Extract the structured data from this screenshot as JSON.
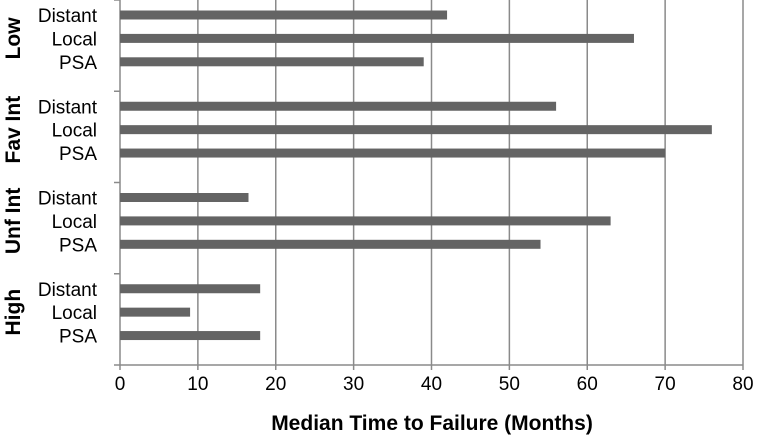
{
  "chart_data": {
    "type": "bar",
    "orientation": "horizontal",
    "xlabel": "Median Time to Failure (Months)",
    "xlim": [
      0,
      80
    ],
    "xticks": [
      0,
      10,
      20,
      30,
      40,
      50,
      60,
      70,
      80
    ],
    "grid": "vertical major gridlines",
    "bar_color": "#646464",
    "groups": [
      {
        "name": "Low",
        "bars": [
          {
            "label": "Distant",
            "value": 42
          },
          {
            "label": "Local",
            "value": 66
          },
          {
            "label": "PSA",
            "value": 39
          }
        ]
      },
      {
        "name": "Fav Int",
        "bars": [
          {
            "label": "Distant",
            "value": 56
          },
          {
            "label": "Local",
            "value": 76
          },
          {
            "label": "PSA",
            "value": 70
          }
        ]
      },
      {
        "name": "Unf Int",
        "bars": [
          {
            "label": "Distant",
            "value": 16.5
          },
          {
            "label": "Local",
            "value": 63
          },
          {
            "label": "PSA",
            "value": 54
          }
        ]
      },
      {
        "name": "High",
        "bars": [
          {
            "label": "Distant",
            "value": 18
          },
          {
            "label": "Local",
            "value": 9
          },
          {
            "label": "PSA",
            "value": 18
          }
        ]
      }
    ]
  }
}
